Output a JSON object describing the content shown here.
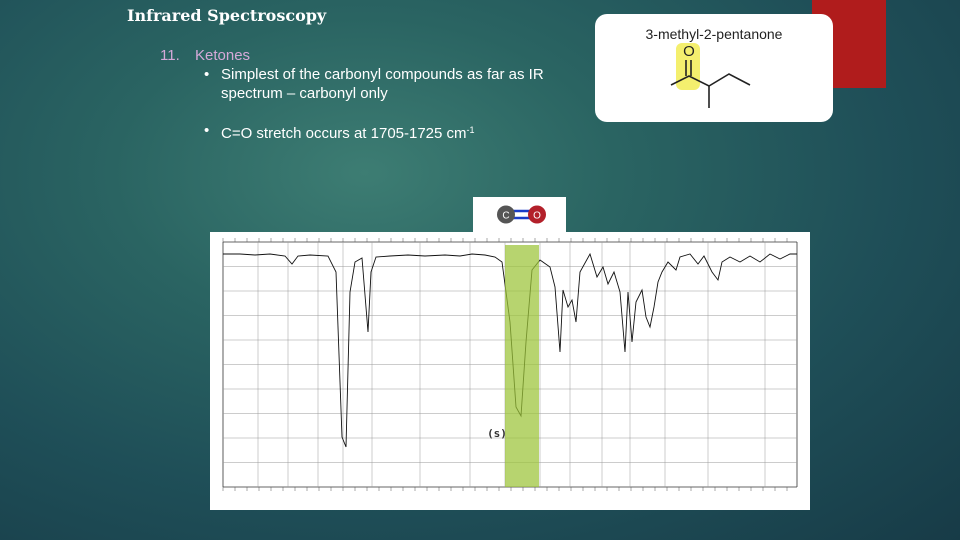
{
  "slide": {
    "title": "Infrared Spectroscopy",
    "section_number": "11.",
    "section_title": "Ketones",
    "bullets": [
      "Simplest of the carbonyl compounds as far as IR spectrum – carbonyl only",
      "C=O stretch occurs at 1705-1725 cm"
    ],
    "bullet_superscript": "-1",
    "bullet_symbol": "•"
  },
  "molecule": {
    "name": "3-methyl-2-pentanone",
    "oxygen_label": "O",
    "highlight_color": "#f4ef6e"
  },
  "bond_image": {
    "left_atom": "C",
    "right_atom": "O",
    "left_color": "#555555",
    "right_color": "#b3202a",
    "bond_color": "#1a3cc8"
  },
  "colors": {
    "accent_red": "#b01c1c",
    "section_color": "#d4a9d8",
    "band_color": "#9bc437"
  },
  "chart_data": {
    "type": "line",
    "band_label": "(s)",
    "band_range_wavenumber": [
      1705,
      1725
    ]
  }
}
